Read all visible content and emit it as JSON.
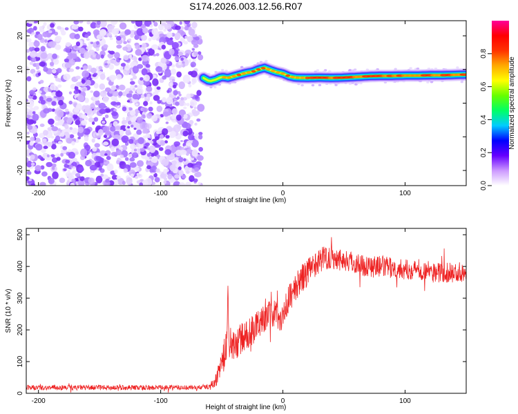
{
  "title": "S174.2026.003.12.56.R07",
  "chart_data": [
    {
      "type": "heatmap",
      "xlabel": "Height of straight line (km)",
      "ylabel": "Frequency (Hz)",
      "xlim": [
        -210,
        150
      ],
      "ylim": [
        -24.5,
        24.5
      ],
      "xticks": [
        -200,
        -100,
        0,
        100
      ],
      "yticks": [
        -20,
        -10,
        0,
        10,
        20
      ],
      "noise_region_x": [
        -210,
        -67
      ],
      "signal_track": {
        "x": [
          -65,
          -60,
          -55,
          -50,
          -45,
          -40,
          -35,
          -30,
          -25,
          -20,
          -15,
          -10,
          -5,
          0,
          5,
          10,
          20,
          30,
          40,
          50,
          60,
          70,
          80,
          90,
          100,
          110,
          120,
          130,
          140,
          150
        ],
        "freq": [
          7.5,
          6.5,
          7.0,
          7.8,
          7.5,
          8.0,
          8.5,
          9.0,
          9.3,
          10.0,
          10.5,
          9.8,
          9.2,
          8.8,
          8.0,
          7.6,
          7.5,
          7.6,
          7.5,
          7.6,
          7.8,
          8.0,
          8.1,
          8.1,
          8.2,
          8.2,
          8.3,
          8.3,
          8.4,
          8.5
        ]
      },
      "colorbar": {
        "label": "Normalized spectral amplitude",
        "range": [
          0.0,
          1.0
        ],
        "ticks": [
          "0.0",
          "0.2",
          "0.4",
          "0.6",
          "0.8"
        ],
        "colors": [
          "#ffffff",
          "#cc99ff",
          "#6600ff",
          "#0000ff",
          "#00ccff",
          "#00ff66",
          "#66ff00",
          "#ffff00",
          "#ffaa00",
          "#ff3300",
          "#ff0000",
          "#ff0099"
        ]
      }
    },
    {
      "type": "line",
      "xlabel": "Height of straight line (km)",
      "ylabel": "SNR (10 * v/v)",
      "xlim": [
        -210,
        150
      ],
      "ylim": [
        0,
        520
      ],
      "xticks": [
        -200,
        -100,
        0,
        100
      ],
      "yticks": [
        0,
        100,
        200,
        300,
        400,
        500
      ],
      "line_color": "#ee2222",
      "series": [
        {
          "name": "SNR",
          "x": [
            -210,
            -180,
            -150,
            -120,
            -90,
            -70,
            -60,
            -55,
            -50,
            -46,
            -45,
            -44,
            -40,
            -35,
            -30,
            -25,
            -20,
            -15,
            -10,
            -5,
            0,
            5,
            10,
            15,
            20,
            25,
            30,
            35,
            40,
            50,
            60,
            70,
            80,
            90,
            100,
            110,
            120,
            130,
            140,
            150
          ],
          "mean": [
            18,
            18,
            18,
            18,
            18,
            18,
            22,
            40,
            95,
            150,
            330,
            150,
            150,
            170,
            180,
            200,
            220,
            240,
            250,
            250,
            240,
            300,
            330,
            360,
            380,
            400,
            420,
            430,
            430,
            420,
            410,
            400,
            400,
            395,
            390,
            390,
            385,
            380,
            380,
            385
          ],
          "noise": [
            8,
            8,
            8,
            8,
            8,
            8,
            8,
            20,
            40,
            60,
            20,
            60,
            50,
            50,
            50,
            50,
            45,
            45,
            45,
            45,
            50,
            45,
            45,
            45,
            45,
            40,
            40,
            40,
            40,
            35,
            35,
            35,
            35,
            32,
            32,
            32,
            32,
            32,
            32,
            32
          ]
        }
      ]
    }
  ]
}
